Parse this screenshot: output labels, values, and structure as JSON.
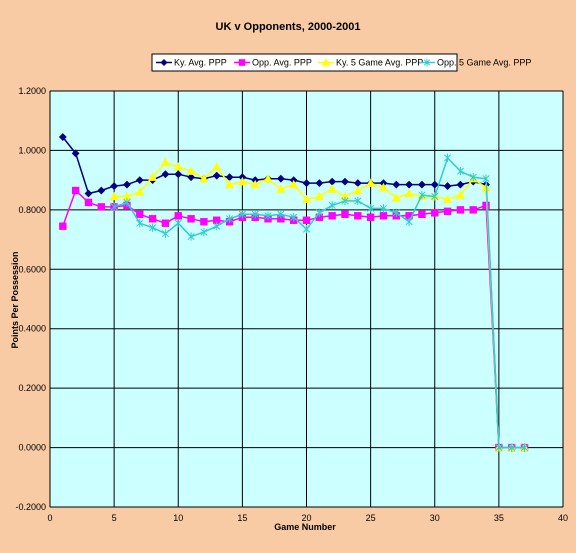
{
  "chart_data": {
    "type": "line",
    "title": "UK v Opponents, 2000-2001",
    "xlabel": "Game Number",
    "ylabel": "Points Per Possession",
    "xlim": [
      0,
      40
    ],
    "ylim": [
      -0.2,
      1.2
    ],
    "xticks": [
      0,
      5,
      10,
      15,
      20,
      25,
      30,
      35,
      40
    ],
    "xtick_labels": [
      "0",
      "5",
      "10",
      "15",
      "20",
      "25",
      "30",
      "35",
      "40"
    ],
    "yticks": [
      -0.2,
      0,
      0.2,
      0.4,
      0.6,
      0.8,
      1.0,
      1.2
    ],
    "ytick_labels": [
      "-0.2000",
      "0.0000",
      "0.2000",
      "0.4000",
      "0.6000",
      "0.8000",
      "1.0000",
      "1.2000"
    ],
    "grid": true,
    "legend_position": "top",
    "plot_background": "#CCFFFF",
    "series": [
      {
        "name": "Ky. Avg. PPP",
        "color": "#000080",
        "marker": "diamond",
        "x": [
          1,
          2,
          3,
          4,
          5,
          6,
          7,
          8,
          9,
          10,
          11,
          12,
          13,
          14,
          15,
          16,
          17,
          18,
          19,
          20,
          21,
          22,
          23,
          24,
          25,
          26,
          27,
          28,
          29,
          30,
          31,
          32,
          33,
          34,
          35,
          36,
          37
        ],
        "y": [
          1.045,
          0.99,
          0.855,
          0.865,
          0.88,
          0.885,
          0.9,
          0.9,
          0.92,
          0.92,
          0.91,
          0.905,
          0.915,
          0.91,
          0.91,
          0.9,
          0.905,
          0.905,
          0.9,
          0.89,
          0.89,
          0.895,
          0.895,
          0.89,
          0.89,
          0.89,
          0.885,
          0.885,
          0.885,
          0.885,
          0.88,
          0.885,
          0.895,
          0.885,
          0.0,
          0.0,
          0.0
        ]
      },
      {
        "name": "Opp. Avg. PPP",
        "color": "#FF00FF",
        "marker": "square",
        "x": [
          1,
          2,
          3,
          4,
          5,
          6,
          7,
          8,
          9,
          10,
          11,
          12,
          13,
          14,
          15,
          16,
          17,
          18,
          19,
          20,
          21,
          22,
          23,
          24,
          25,
          26,
          27,
          28,
          29,
          30,
          31,
          32,
          33,
          34,
          35,
          36,
          37
        ],
        "y": [
          0.745,
          0.865,
          0.825,
          0.81,
          0.81,
          0.815,
          0.785,
          0.77,
          0.755,
          0.78,
          0.77,
          0.76,
          0.765,
          0.76,
          0.775,
          0.775,
          0.77,
          0.77,
          0.765,
          0.765,
          0.775,
          0.78,
          0.785,
          0.78,
          0.775,
          0.78,
          0.78,
          0.78,
          0.785,
          0.79,
          0.795,
          0.8,
          0.8,
          0.815,
          0.0,
          0.0,
          0.0
        ]
      },
      {
        "name": "Ky. 5 Game Avg. PPP",
        "color": "#FFFF00",
        "marker": "triangle",
        "x": [
          5,
          6,
          7,
          8,
          9,
          10,
          11,
          12,
          13,
          14,
          15,
          16,
          17,
          18,
          19,
          20,
          21,
          22,
          23,
          24,
          25,
          26,
          27,
          28,
          29,
          30,
          31,
          32,
          33,
          34,
          35,
          36,
          37
        ],
        "y": [
          0.845,
          0.845,
          0.86,
          0.91,
          0.96,
          0.945,
          0.93,
          0.905,
          0.945,
          0.885,
          0.895,
          0.885,
          0.905,
          0.87,
          0.885,
          0.835,
          0.845,
          0.87,
          0.845,
          0.865,
          0.89,
          0.875,
          0.84,
          0.855,
          0.845,
          0.845,
          0.835,
          0.85,
          0.905,
          0.875,
          0.0,
          0.0,
          0.0
        ]
      },
      {
        "name": "Opp. 5 Game Avg. PPP",
        "color": "#33CCCC",
        "marker": "star",
        "x": [
          5,
          6,
          7,
          8,
          9,
          10,
          11,
          12,
          13,
          14,
          15,
          16,
          17,
          18,
          19,
          20,
          21,
          22,
          23,
          24,
          25,
          26,
          27,
          28,
          29,
          30,
          31,
          32,
          33,
          34,
          35,
          36,
          37
        ],
        "y": [
          0.81,
          0.825,
          0.755,
          0.74,
          0.72,
          0.755,
          0.71,
          0.725,
          0.745,
          0.77,
          0.785,
          0.785,
          0.78,
          0.785,
          0.775,
          0.735,
          0.79,
          0.815,
          0.83,
          0.83,
          0.805,
          0.805,
          0.79,
          0.76,
          0.85,
          0.845,
          0.975,
          0.93,
          0.91,
          0.905,
          0.0,
          0.0,
          0.0
        ]
      }
    ]
  }
}
